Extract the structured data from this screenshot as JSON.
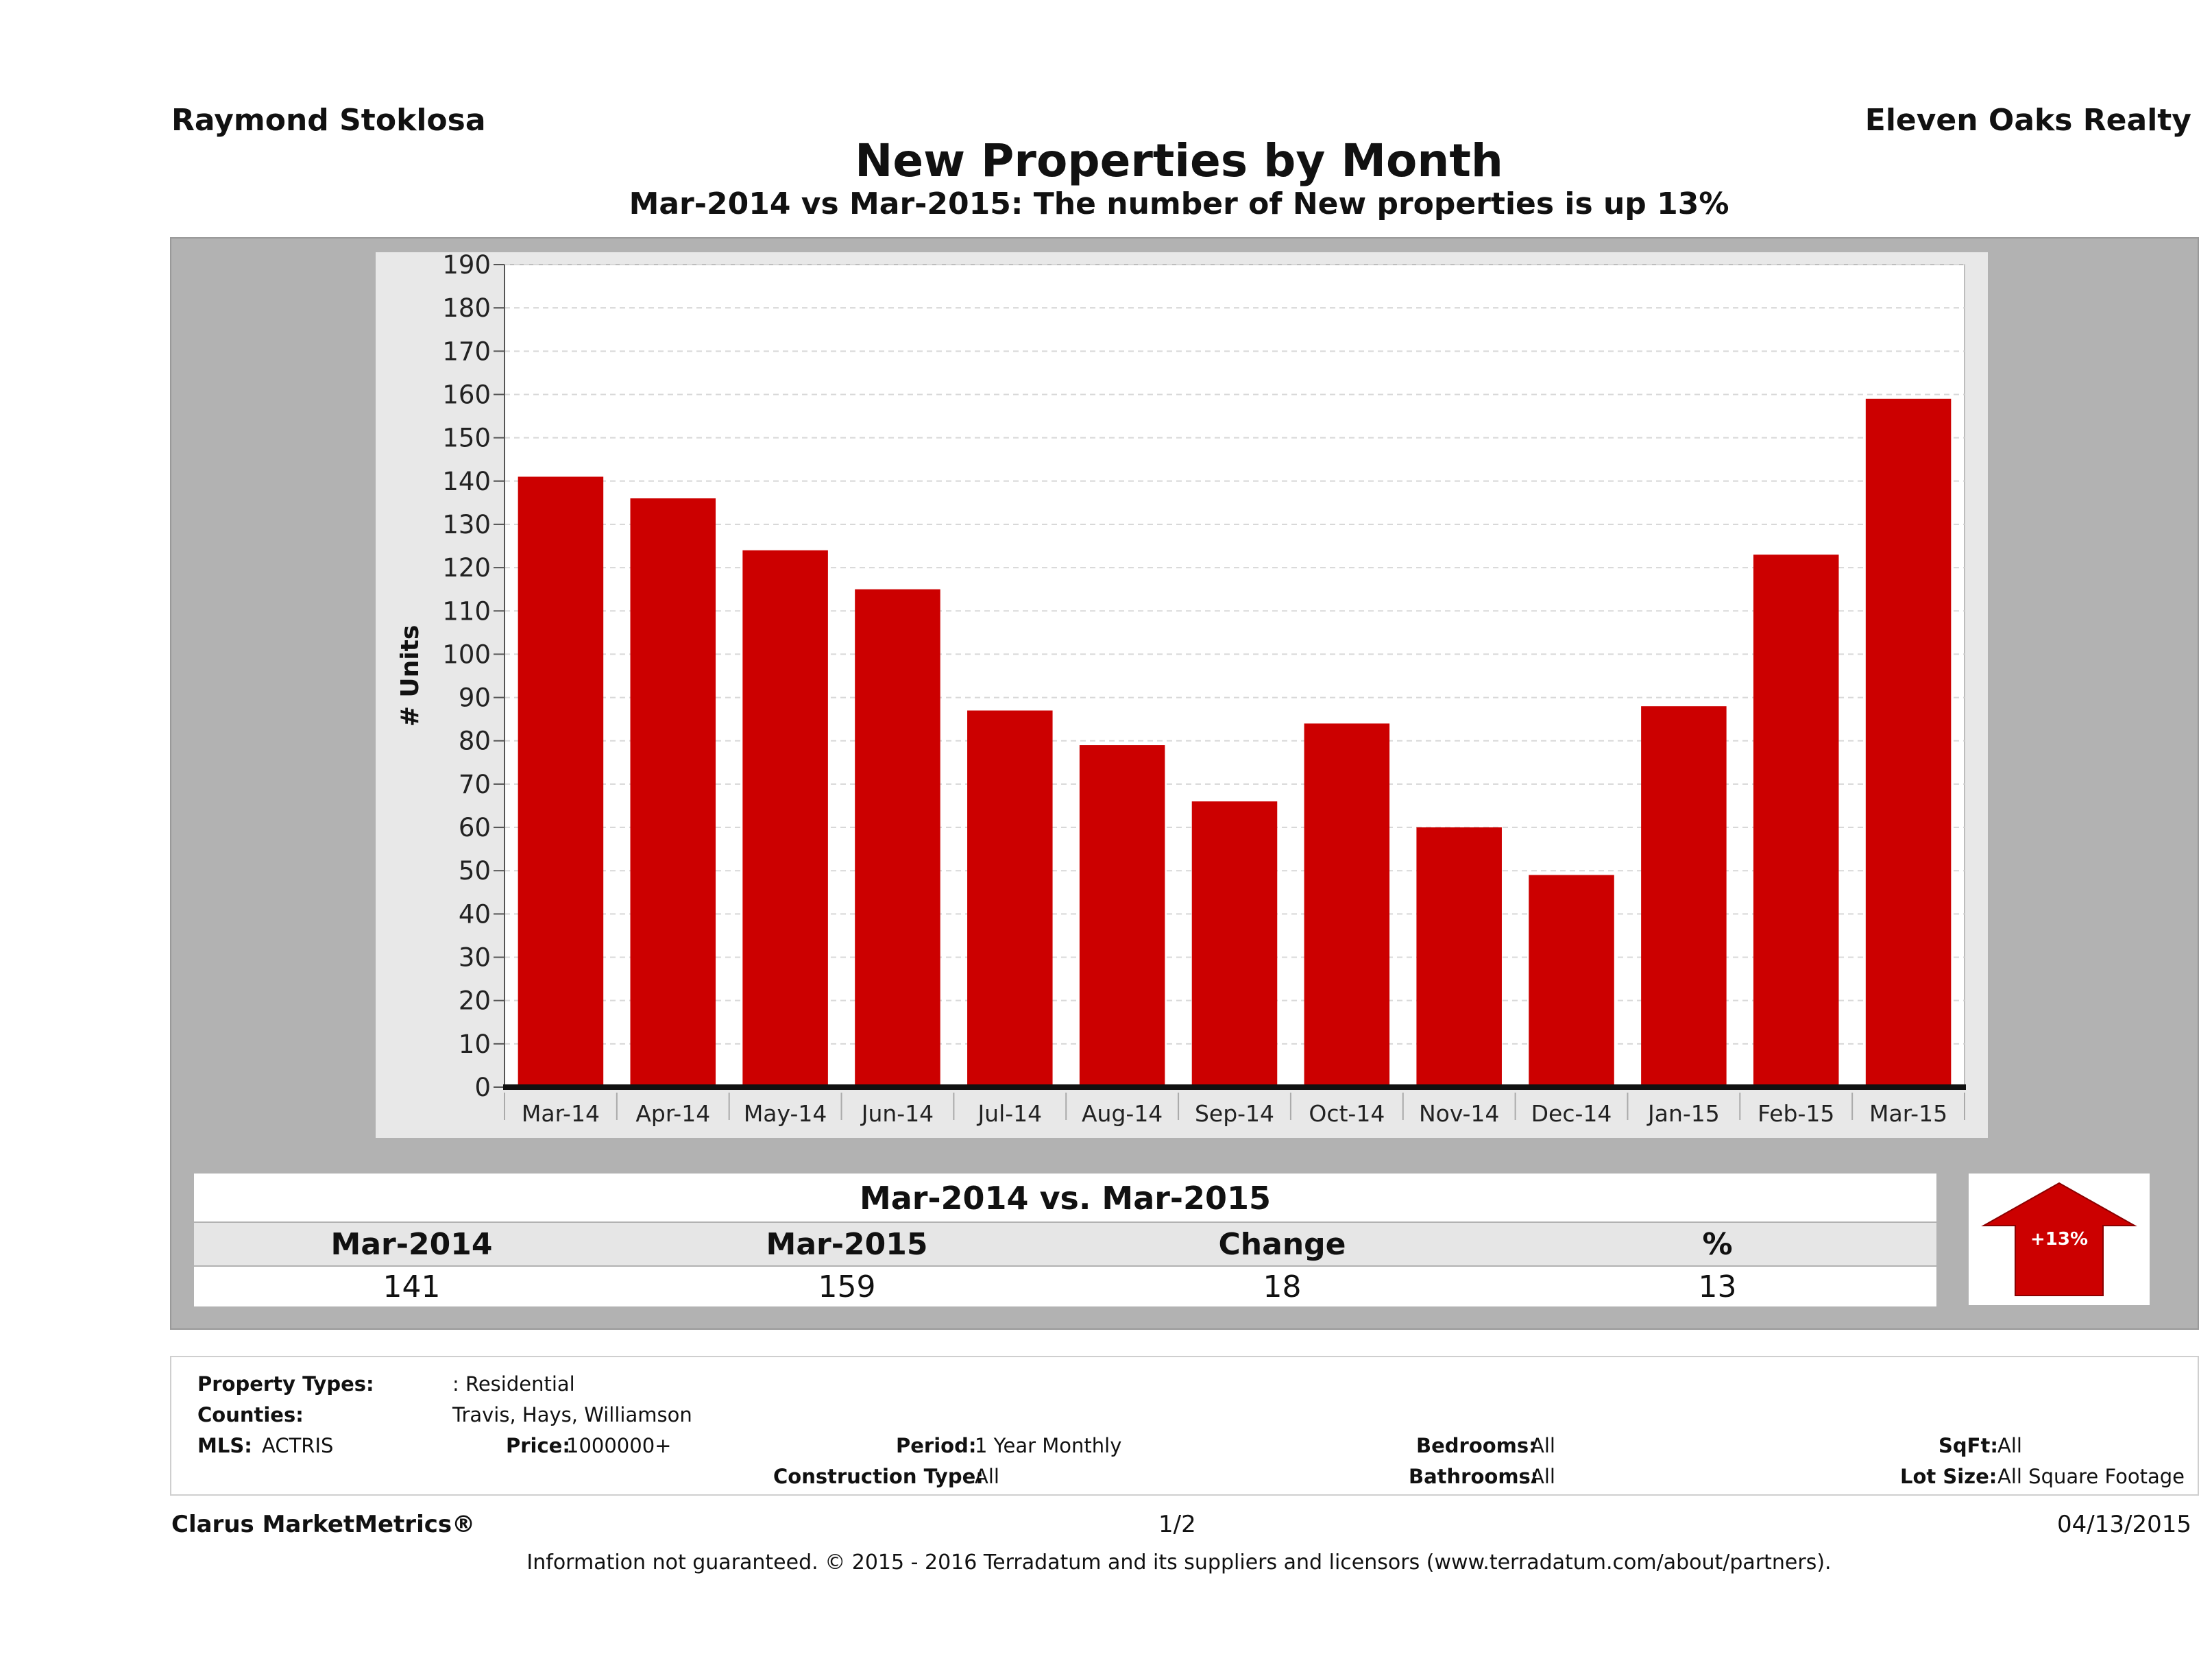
{
  "header": {
    "agent": "Raymond Stoklosa",
    "company": "Eleven Oaks Realty",
    "title": "New Properties by Month",
    "subtitle": "Mar-2014 vs Mar-2015: The number of New  properties is up 13%"
  },
  "chart_data": {
    "type": "bar",
    "ylabel": "# Units",
    "xlabel": "",
    "ylim": [
      0,
      190
    ],
    "ytick_step": 10,
    "grid": true,
    "bar_color": "#cc0000",
    "categories": [
      "Mar-14",
      "Apr-14",
      "May-14",
      "Jun-14",
      "Jul-14",
      "Aug-14",
      "Sep-14",
      "Oct-14",
      "Nov-14",
      "Dec-14",
      "Jan-15",
      "Feb-15",
      "Mar-15"
    ],
    "values": [
      141,
      136,
      124,
      115,
      87,
      79,
      66,
      84,
      60,
      49,
      88,
      123,
      159
    ]
  },
  "summary": {
    "heading": "Mar-2014 vs. Mar-2015",
    "labels": [
      "Mar-2014",
      "Mar-2015",
      "Change",
      "%"
    ],
    "values": [
      "141",
      "159",
      "18",
      "13"
    ],
    "badge": "+13%",
    "badge_color": "#cc0000"
  },
  "info": {
    "property_types_label": "Property Types:",
    "property_types_value": ": Residential",
    "counties_label": "Counties:",
    "counties_value": "Travis, Hays, Williamson",
    "mls_label": "MLS:",
    "mls_value": "ACTRIS",
    "price_label": "Price:",
    "price_value": "1000000+",
    "period_label": "Period:",
    "period_value": "1 Year Monthly",
    "construction_label": "Construction Type:",
    "construction_value": "All",
    "bedrooms_label": "Bedrooms:",
    "bedrooms_value": "All",
    "bathrooms_label": "Bathrooms:",
    "bathrooms_value": "All",
    "sqft_label": "SqFt:",
    "sqft_value": "All",
    "lotsize_label": "Lot Size:",
    "lotsize_value": "All Square Footage"
  },
  "footer": {
    "brand": "Clarus MarketMetrics®",
    "page": "1/2",
    "date": "04/13/2015",
    "disclaimer": "Information not guaranteed. © 2015 - 2016 Terradatum and its suppliers and licensors (www.terradatum.com/about/partners)."
  }
}
